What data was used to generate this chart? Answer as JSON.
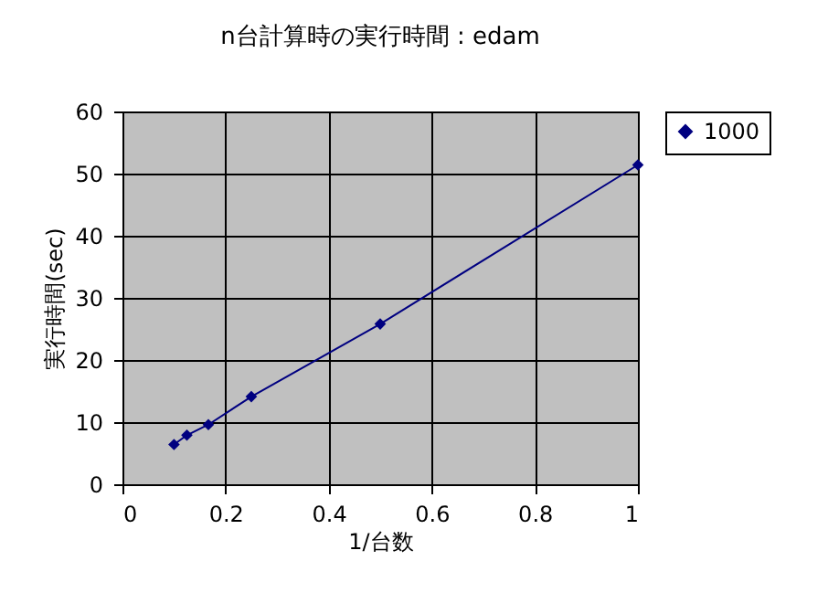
{
  "chart_data": {
    "type": "line",
    "title": "n台計算時の実行時間 : edam",
    "xlabel": "1/台数",
    "ylabel": "実行時間(sec)",
    "x": [
      0.1,
      0.125,
      0.1667,
      0.25,
      0.5,
      1
    ],
    "series": [
      {
        "name": "1000",
        "color": "#000080",
        "values": [
          6.4,
          7.9,
          9.6,
          14.1,
          25.8,
          51.4
        ]
      }
    ],
    "xlim": [
      0,
      1
    ],
    "xticks": [
      0,
      0.2,
      0.4,
      0.6,
      0.8,
      1
    ],
    "ylim": [
      0,
      60
    ],
    "yticks": [
      0,
      10,
      20,
      30,
      40,
      50,
      60
    ],
    "grid": true,
    "legend": "right",
    "marker": "diamond",
    "line_style": "solid"
  }
}
